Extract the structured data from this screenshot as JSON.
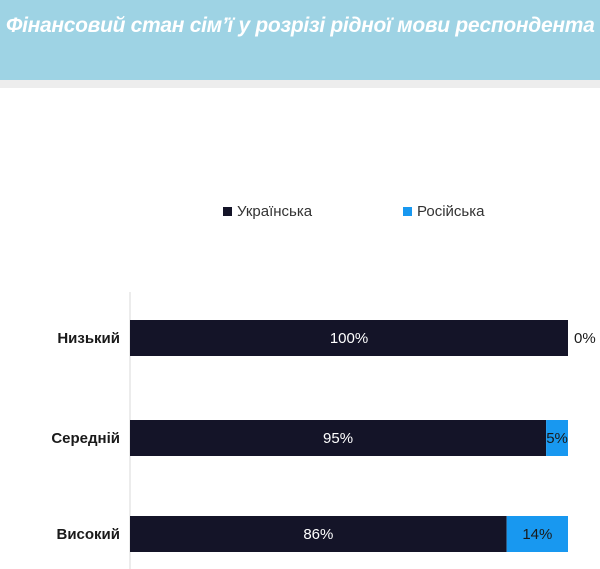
{
  "header": {
    "title": "Фінансовий стан сім’ї у розрізі рідної мови респондента"
  },
  "colors": {
    "header_bg": "#9ed3e4",
    "ukrainian": "#141428",
    "russian": "#1898f0"
  },
  "chart_data": {
    "type": "bar",
    "orientation": "horizontal",
    "stacked": true,
    "percent": true,
    "categories": [
      "Низький",
      "Середній",
      "Високий"
    ],
    "series": [
      {
        "name": "Українська",
        "values": [
          100,
          95,
          86
        ],
        "labels": [
          "100%",
          "95%",
          "86%"
        ],
        "color": "#141428",
        "label_color": "#ffffff"
      },
      {
        "name": "Російська",
        "values": [
          0,
          5,
          14
        ],
        "labels": [
          "0%",
          "5%",
          "14%"
        ],
        "color": "#1898f0",
        "label_color": "#1a1a1a"
      }
    ],
    "xlim": [
      0,
      100
    ],
    "legend_position": "top",
    "grid": false
  }
}
